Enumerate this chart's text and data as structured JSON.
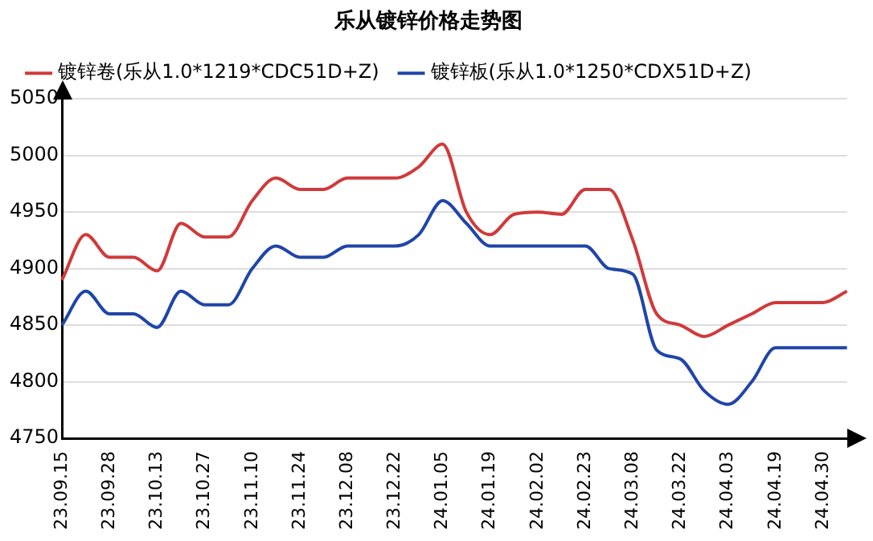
{
  "chart_data": {
    "type": "line",
    "title": "乐从镀锌价格走势图",
    "categories": [
      "23.09.15",
      null,
      "23.09.28",
      null,
      "23.10.13",
      null,
      "23.10.27",
      null,
      "23.11.10",
      null,
      "23.11.24",
      null,
      "23.12.08",
      null,
      "23.12.22",
      null,
      "24.01.05",
      null,
      "24.01.19",
      null,
      "24.02.02",
      null,
      "24.02.23",
      null,
      "24.03.08",
      null,
      "24.03.22",
      null,
      "24.04.03",
      null,
      "24.04.19",
      null,
      "24.04.30",
      null
    ],
    "series": [
      {
        "name": "镀锌卷(乐从1.0*1219*CDC51D+Z)",
        "color": "#d03a3a",
        "values": [
          4890,
          4930,
          4910,
          4910,
          4898,
          4940,
          4928,
          4928,
          4960,
          4980,
          4970,
          4970,
          4980,
          4980,
          4980,
          4990,
          5010,
          4950,
          4930,
          4948,
          4950,
          4948,
          4970,
          4970,
          4925,
          4860,
          4850,
          4840,
          4850,
          4860,
          4870,
          4870,
          4870,
          4880
        ]
      },
      {
        "name": "镀锌板(乐从1.0*1250*CDX51D+Z)",
        "color": "#1f45a8",
        "values": [
          4850,
          4880,
          4860,
          4860,
          4848,
          4880,
          4868,
          4868,
          4900,
          4920,
          4910,
          4910,
          4920,
          4920,
          4920,
          4930,
          4960,
          4940,
          4920,
          4920,
          4920,
          4920,
          4920,
          4900,
          4895,
          4828,
          4820,
          4792,
          4780,
          4800,
          4830,
          4830,
          4830,
          4830
        ]
      }
    ],
    "ylim": [
      4750,
      5050
    ],
    "yticks": [
      4750,
      4800,
      4850,
      4900,
      4950,
      5000,
      5050
    ],
    "grid": "y",
    "legend": "top",
    "marker": "none",
    "line_style": "solid"
  }
}
